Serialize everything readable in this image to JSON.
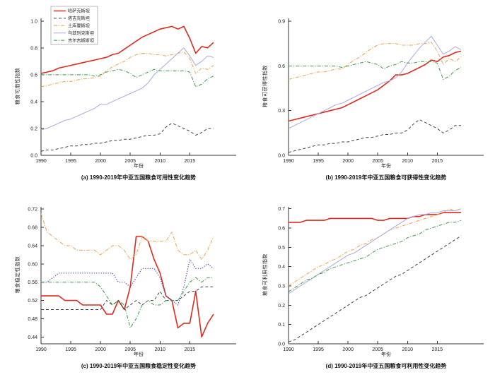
{
  "figure": {
    "background": "#ffffff"
  },
  "legend": {
    "position": "upper-left-of-subplot-a",
    "items": [
      {
        "label": "哈萨克斯坦",
        "color": "#dd2a1e",
        "style": "solid",
        "width": 1.6
      },
      {
        "label": "塔吉克斯坦",
        "color": "#404040",
        "style": "dashed",
        "width": 1.0
      },
      {
        "label": "土库曼斯坦",
        "color": "#efa14b",
        "style": "dashdot",
        "width": 1.0
      },
      {
        "label": "乌兹别克斯坦",
        "color": "#a9a9de",
        "style": "solid",
        "width": 1.0
      },
      {
        "label": "吉尔吉斯斯坦",
        "color": "#3c9a47",
        "style": "dashdot",
        "width": 1.0
      }
    ]
  },
  "chart_data": [
    {
      "id": "a",
      "type": "line",
      "title": "(a) 1990-2019年中亚五国粮食可用性变化趋势",
      "ylabel": "粮食可用性指数",
      "xlabel": "年份",
      "x_years": "1990-2019 annual",
      "xlim": [
        1990,
        2022.8
      ],
      "ylim": [
        0,
        1.02
      ],
      "xticks": [
        1990,
        1995,
        2000,
        2005,
        2010,
        2015
      ],
      "xtick_labels": [
        "1990",
        "1995",
        "2000",
        "2005",
        "2010",
        "2015"
      ],
      "yticks": [
        0.0,
        0.2,
        0.4,
        0.6,
        0.8,
        1.0
      ],
      "ytick_labels": [
        "0.0",
        "0.2",
        "0.4",
        "0.6",
        "0.8",
        "1.0"
      ],
      "grid": false,
      "show_legend": true,
      "series": [
        {
          "name": "哈萨克斯坦",
          "color": "#dd2a1e",
          "style": "solid",
          "width": 1.6,
          "values": [
            0.61,
            0.62,
            0.63,
            0.65,
            0.66,
            0.67,
            0.68,
            0.69,
            0.7,
            0.71,
            0.72,
            0.73,
            0.75,
            0.76,
            0.79,
            0.82,
            0.85,
            0.88,
            0.9,
            0.92,
            0.94,
            0.95,
            0.96,
            0.94,
            0.96,
            0.87,
            0.76,
            0.81,
            0.8,
            0.84
          ]
        },
        {
          "name": "塔吉克斯坦",
          "color": "#404040",
          "style": "dashed",
          "width": 1.0,
          "values": [
            0.03,
            0.04,
            0.04,
            0.05,
            0.06,
            0.07,
            0.07,
            0.08,
            0.08,
            0.09,
            0.09,
            0.1,
            0.11,
            0.11,
            0.12,
            0.12,
            0.13,
            0.14,
            0.15,
            0.15,
            0.16,
            0.21,
            0.24,
            0.22,
            0.2,
            0.18,
            0.15,
            0.17,
            0.2,
            0.2
          ]
        },
        {
          "name": "土库曼斯坦",
          "color": "#efa14b",
          "style": "dashdot",
          "width": 1.0,
          "values": [
            0.51,
            0.52,
            0.53,
            0.54,
            0.55,
            0.55,
            0.56,
            0.57,
            0.57,
            0.58,
            0.59,
            0.63,
            0.66,
            0.68,
            0.7,
            0.73,
            0.75,
            0.76,
            0.76,
            0.75,
            0.75,
            0.74,
            0.75,
            0.76,
            0.77,
            0.72,
            0.61,
            0.65,
            0.64,
            0.67
          ]
        },
        {
          "name": "乌兹别克斯坦",
          "color": "#a9a9de",
          "style": "solid",
          "width": 1.0,
          "values": [
            0.19,
            0.2,
            0.22,
            0.24,
            0.26,
            0.27,
            0.29,
            0.31,
            0.33,
            0.35,
            0.38,
            0.38,
            0.4,
            0.42,
            0.44,
            0.46,
            0.48,
            0.5,
            0.54,
            0.6,
            0.64,
            0.68,
            0.72,
            0.76,
            0.8,
            0.74,
            0.67,
            0.7,
            0.74,
            0.73
          ]
        },
        {
          "name": "吉尔吉斯斯坦",
          "color": "#3c9a47",
          "style": "dashdot",
          "width": 1.0,
          "values": [
            0.6,
            0.6,
            0.6,
            0.6,
            0.6,
            0.6,
            0.6,
            0.6,
            0.6,
            0.59,
            0.6,
            0.62,
            0.63,
            0.64,
            0.63,
            0.61,
            0.58,
            0.6,
            0.62,
            0.64,
            0.63,
            0.63,
            0.63,
            0.63,
            0.63,
            0.62,
            0.51,
            0.53,
            0.57,
            0.59
          ]
        }
      ]
    },
    {
      "id": "b",
      "type": "line",
      "title": "(b) 1990-2019年中亚五国粮食可获得性变化趋势",
      "ylabel": "粮食可获得性指数",
      "xlabel": "年份",
      "x_years": "1990-2019 annual",
      "xlim": [
        1990,
        2022.8
      ],
      "ylim": [
        0,
        0.92
      ],
      "xticks": [
        1990,
        1995,
        2000,
        2005,
        2010,
        2015
      ],
      "xtick_labels": [
        "1990",
        "1995",
        "2000",
        "2005",
        "2010",
        "2015"
      ],
      "yticks": [
        0.0,
        0.3,
        0.6,
        0.9
      ],
      "ytick_labels": [
        "0.0",
        "0.3",
        "0.6",
        "0.9"
      ],
      "grid": false,
      "show_legend": false,
      "series": [
        {
          "name": "哈萨克斯坦",
          "color": "#dd2a1e",
          "style": "solid",
          "width": 1.6,
          "values": [
            0.23,
            0.24,
            0.25,
            0.26,
            0.27,
            0.28,
            0.29,
            0.3,
            0.31,
            0.32,
            0.34,
            0.36,
            0.38,
            0.4,
            0.42,
            0.44,
            0.47,
            0.5,
            0.54,
            0.54,
            0.55,
            0.57,
            0.59,
            0.61,
            0.64,
            0.63,
            0.66,
            0.67,
            0.69,
            0.7
          ]
        },
        {
          "name": "塔吉克斯坦",
          "color": "#404040",
          "style": "dashed",
          "width": 1.0,
          "values": [
            0.02,
            0.03,
            0.04,
            0.05,
            0.06,
            0.07,
            0.07,
            0.08,
            0.08,
            0.09,
            0.09,
            0.1,
            0.11,
            0.12,
            0.12,
            0.13,
            0.14,
            0.14,
            0.15,
            0.15,
            0.17,
            0.21,
            0.24,
            0.22,
            0.2,
            0.18,
            0.15,
            0.17,
            0.2,
            0.2
          ]
        },
        {
          "name": "土库曼斯坦",
          "color": "#efa14b",
          "style": "dashdot",
          "width": 1.0,
          "values": [
            0.51,
            0.52,
            0.53,
            0.54,
            0.55,
            0.56,
            0.56,
            0.57,
            0.58,
            0.58,
            0.61,
            0.64,
            0.66,
            0.69,
            0.72,
            0.74,
            0.75,
            0.75,
            0.75,
            0.74,
            0.74,
            0.74,
            0.75,
            0.75,
            0.76,
            0.7,
            0.61,
            0.65,
            0.63,
            0.66
          ]
        },
        {
          "name": "乌兹别克斯坦",
          "color": "#a9a9de",
          "style": "solid",
          "width": 1.0,
          "values": [
            0.18,
            0.2,
            0.22,
            0.24,
            0.26,
            0.28,
            0.3,
            0.32,
            0.34,
            0.35,
            0.37,
            0.39,
            0.41,
            0.43,
            0.45,
            0.47,
            0.49,
            0.5,
            0.52,
            0.56,
            0.62,
            0.67,
            0.72,
            0.76,
            0.8,
            0.74,
            0.68,
            0.7,
            0.73,
            0.71
          ]
        },
        {
          "name": "吉尔吉斯斯坦",
          "color": "#3c9a47",
          "style": "dashdot",
          "width": 1.0,
          "values": [
            0.6,
            0.6,
            0.6,
            0.6,
            0.6,
            0.6,
            0.6,
            0.6,
            0.6,
            0.59,
            0.6,
            0.61,
            0.62,
            0.63,
            0.62,
            0.61,
            0.58,
            0.6,
            0.61,
            0.63,
            0.62,
            0.62,
            0.63,
            0.63,
            0.63,
            0.62,
            0.51,
            0.53,
            0.57,
            0.59
          ]
        }
      ]
    },
    {
      "id": "c",
      "type": "line",
      "title": "(c) 1990-2019年中亚五国粮食稳定性变化趋势",
      "ylabel": "粮食稳定性指数",
      "xlabel": "年份",
      "x_years": "1990-2019 annual",
      "xlim": [
        1990,
        2022.8
      ],
      "ylim": [
        0.425,
        0.725
      ],
      "xticks": [
        1990,
        1995,
        2000,
        2005,
        2010,
        2015
      ],
      "xtick_labels": [
        "1990",
        "1995",
        "2000",
        "2005",
        "2010",
        "2015"
      ],
      "yticks": [
        0.44,
        0.48,
        0.52,
        0.56,
        0.6,
        0.64,
        0.68,
        0.72
      ],
      "ytick_labels": [
        "0.44",
        "0.48",
        "0.52",
        "0.56",
        "0.60",
        "0.64",
        "0.68",
        "0.72"
      ],
      "grid": false,
      "show_legend": false,
      "series": [
        {
          "name": "哈萨克斯坦",
          "color": "#dd2a1e",
          "style": "solid",
          "width": 1.6,
          "values": [
            0.53,
            0.53,
            0.53,
            0.53,
            0.52,
            0.52,
            0.52,
            0.51,
            0.51,
            0.51,
            0.51,
            0.49,
            0.49,
            0.52,
            0.5,
            0.55,
            0.66,
            0.66,
            0.65,
            0.61,
            0.58,
            0.53,
            0.52,
            0.46,
            0.47,
            0.47,
            0.54,
            0.44,
            0.47,
            0.49
          ]
        },
        {
          "name": "塔吉克斯坦",
          "color": "#404040",
          "style": "dashed",
          "width": 1.0,
          "values": [
            0.5,
            0.5,
            0.5,
            0.5,
            0.5,
            0.5,
            0.5,
            0.5,
            0.5,
            0.5,
            0.5,
            0.52,
            0.51,
            0.52,
            0.5,
            0.51,
            0.52,
            0.51,
            0.52,
            0.52,
            0.54,
            0.52,
            0.52,
            0.52,
            0.53,
            0.54,
            0.54,
            0.55,
            0.55,
            0.55
          ]
        },
        {
          "name": "土库曼斯坦",
          "color": "#efa14b",
          "style": "dashdot",
          "width": 1.0,
          "values": [
            0.71,
            0.67,
            0.66,
            0.65,
            0.64,
            0.64,
            0.63,
            0.63,
            0.63,
            0.63,
            0.62,
            0.63,
            0.64,
            0.64,
            0.63,
            0.61,
            0.62,
            0.66,
            0.65,
            0.65,
            0.65,
            0.65,
            0.67,
            0.63,
            0.62,
            0.62,
            0.63,
            0.61,
            0.63,
            0.66
          ]
        },
        {
          "name": "乌兹别克斯坦",
          "color": "#4b49c8",
          "style": "dotted",
          "width": 1.2,
          "values": [
            0.56,
            0.56,
            0.57,
            0.58,
            0.58,
            0.58,
            0.58,
            0.58,
            0.58,
            0.58,
            0.58,
            0.58,
            0.58,
            0.56,
            0.56,
            0.55,
            0.57,
            0.59,
            0.59,
            0.59,
            0.57,
            0.53,
            0.52,
            0.51,
            0.55,
            0.61,
            0.59,
            0.59,
            0.6,
            0.59
          ]
        },
        {
          "name": "吉尔吉斯斯坦",
          "color": "#3c9a47",
          "style": "dashdot",
          "width": 1.0,
          "values": [
            0.56,
            0.56,
            0.56,
            0.56,
            0.56,
            0.56,
            0.56,
            0.56,
            0.56,
            0.56,
            0.55,
            0.53,
            0.51,
            0.52,
            0.51,
            0.46,
            0.48,
            0.51,
            0.52,
            0.51,
            0.51,
            0.52,
            0.52,
            0.52,
            0.54,
            0.56,
            0.57,
            0.56,
            0.57,
            0.57
          ]
        }
      ]
    },
    {
      "id": "d",
      "type": "line",
      "title": "(d) 1990-2019年中亚五国粮食可利用性变化趋势",
      "ylabel": "粮食可利用性指数",
      "xlabel": "年份",
      "x_years": "1990-2019 annual",
      "xlim": [
        1990,
        2022.8
      ],
      "ylim": [
        0,
        0.71
      ],
      "xticks": [
        1990,
        1995,
        2000,
        2005,
        2010,
        2015
      ],
      "xtick_labels": [
        "1990",
        "1995",
        "2000",
        "2005",
        "2010",
        "2015"
      ],
      "yticks": [
        0.0,
        0.1,
        0.2,
        0.3,
        0.4,
        0.5,
        0.6,
        0.7
      ],
      "ytick_labels": [
        "0.0",
        "0.1",
        "0.2",
        "0.3",
        "0.4",
        "0.5",
        "0.6",
        "0.7"
      ],
      "grid": false,
      "show_legend": false,
      "series": [
        {
          "name": "哈萨克斯坦",
          "color": "#dd2a1e",
          "style": "solid",
          "width": 1.6,
          "values": [
            0.63,
            0.63,
            0.63,
            0.64,
            0.64,
            0.64,
            0.64,
            0.65,
            0.65,
            0.65,
            0.65,
            0.65,
            0.65,
            0.65,
            0.65,
            0.64,
            0.64,
            0.65,
            0.65,
            0.65,
            0.65,
            0.66,
            0.66,
            0.67,
            0.67,
            0.67,
            0.68,
            0.68,
            0.68,
            0.68
          ]
        },
        {
          "name": "塔吉克斯坦",
          "color": "#404040",
          "style": "dashed",
          "width": 1.0,
          "values": [
            0.01,
            0.02,
            0.04,
            0.06,
            0.08,
            0.1,
            0.12,
            0.14,
            0.16,
            0.18,
            0.2,
            0.22,
            0.24,
            0.25,
            0.27,
            0.29,
            0.31,
            0.33,
            0.35,
            0.36,
            0.38,
            0.4,
            0.42,
            0.44,
            0.46,
            0.48,
            0.5,
            0.52,
            0.54,
            0.56
          ]
        },
        {
          "name": "土库曼斯坦",
          "color": "#efa14b",
          "style": "dashdot",
          "width": 1.0,
          "values": [
            0.3,
            0.32,
            0.34,
            0.36,
            0.38,
            0.4,
            0.41,
            0.43,
            0.44,
            0.46,
            0.48,
            0.49,
            0.51,
            0.52,
            0.54,
            0.55,
            0.57,
            0.59,
            0.6,
            0.61,
            0.62,
            0.63,
            0.64,
            0.65,
            0.66,
            0.67,
            0.68,
            0.7,
            0.69,
            0.7
          ]
        },
        {
          "name": "乌兹别克斯坦",
          "color": "#a9a9de",
          "style": "solid",
          "width": 1.0,
          "values": [
            0.26,
            0.28,
            0.3,
            0.32,
            0.34,
            0.36,
            0.38,
            0.4,
            0.42,
            0.44,
            0.46,
            0.47,
            0.49,
            0.51,
            0.53,
            0.55,
            0.57,
            0.59,
            0.61,
            0.63,
            0.65,
            0.66,
            0.67,
            0.67,
            0.68,
            0.68,
            0.69,
            0.69,
            0.69,
            0.7
          ]
        },
        {
          "name": "吉尔吉斯斯坦",
          "color": "#3c9a47",
          "style": "dashdot",
          "width": 1.0,
          "values": [
            0.27,
            0.29,
            0.31,
            0.33,
            0.34,
            0.36,
            0.37,
            0.39,
            0.4,
            0.41,
            0.42,
            0.43,
            0.44,
            0.45,
            0.47,
            0.49,
            0.5,
            0.51,
            0.52,
            0.53,
            0.55,
            0.56,
            0.57,
            0.59,
            0.6,
            0.61,
            0.62,
            0.63,
            0.63,
            0.64
          ]
        }
      ]
    }
  ]
}
